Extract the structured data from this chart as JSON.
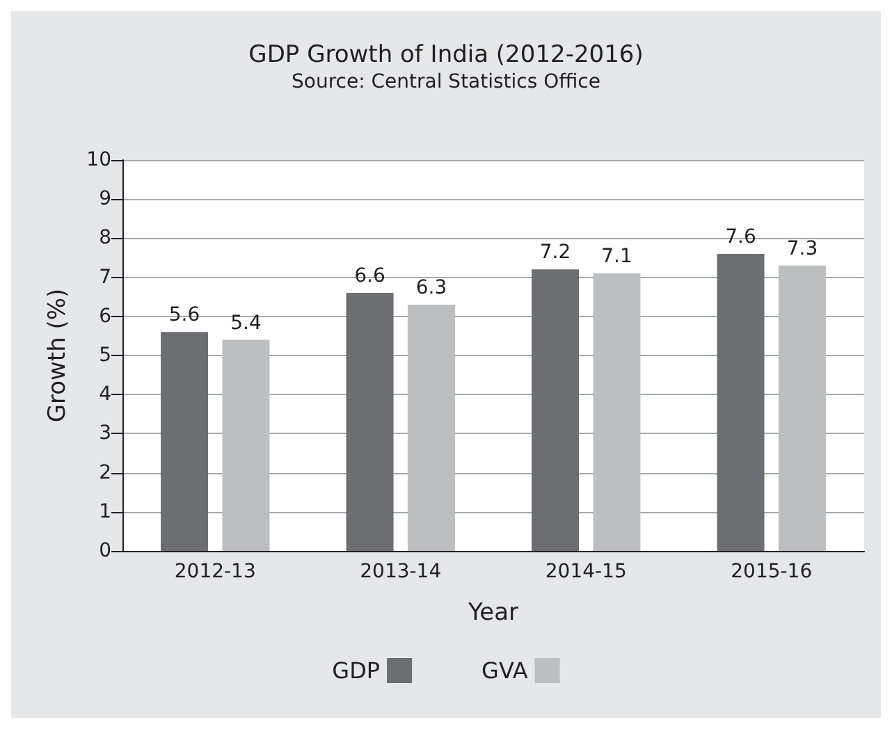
{
  "chart_data": {
    "type": "bar",
    "title": "GDP Growth of India (2012-2016)",
    "subtitle": "Source: Central Statistics Office",
    "xlabel": "Year",
    "ylabel": "Growth (%)",
    "categories": [
      "2012-13",
      "2013-14",
      "2014-15",
      "2015-16"
    ],
    "series": [
      {
        "name": "GDP",
        "color": "#6d6e71",
        "values": [
          5.6,
          6.6,
          7.2,
          7.6
        ]
      },
      {
        "name": "GVA",
        "color": "#bcbec0",
        "values": [
          5.4,
          6.3,
          7.1,
          7.3
        ]
      }
    ],
    "ylim": [
      0,
      10
    ],
    "yticks": [
      0,
      1,
      2,
      3,
      4,
      5,
      6,
      7,
      8,
      9,
      10
    ],
    "grid": "y",
    "legend": "bottom",
    "data_labels": true
  }
}
